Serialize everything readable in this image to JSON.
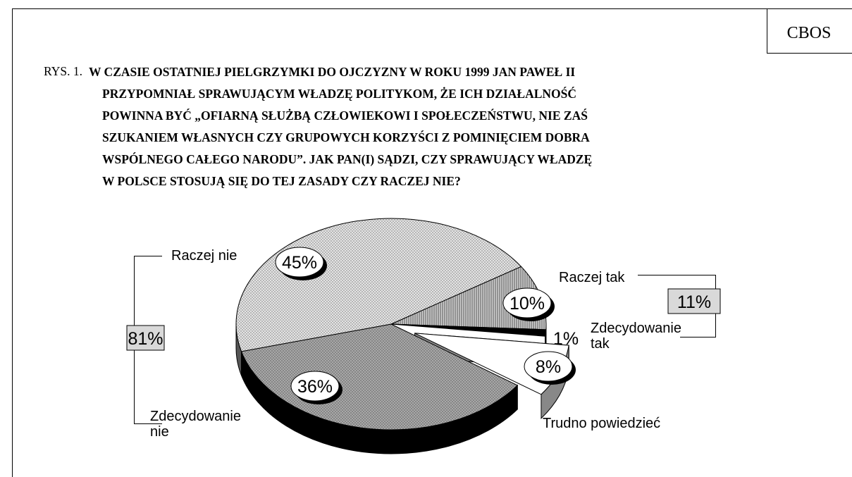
{
  "chart_data": {
    "type": "pie",
    "source": "CBOS",
    "figure_label": "RYS. 1.",
    "title": [
      "W CZASIE OSTATNIEJ PIELGRZYMKI DO OJCZYZNY W ROKU 1999 JAN PAWEŁ II",
      "PRZYPOMNIAŁ SPRAWUJĄCYM WŁADZĘ POLITYKOM, ŻE ICH DZIAŁALNOŚĆ",
      "POWINNA BYĆ „OFIARNĄ SŁUŻBĄ CZŁOWIEKOWI I SPOŁECZEŃSTWU, NIE ZAŚ",
      "SZUKANIEM WŁASNYCH CZY GRUPOWYCH KORZYŚCI Z POMINIĘCIEM DOBRA",
      "WSPÓLNEGO CAŁEGO NARODU”. JAK PAN(I) SĄDZI, CZY SPRAWUJĄCY WŁADZĘ",
      "W  POLSCE STOSUJĄ SIĘ DO TEJ ZASADY CZY RACZEJ NIE?"
    ],
    "categories": [
      "Raczej tak",
      "Zdecydowanie tak",
      "Trudno powiedzieć",
      "Zdecydowanie nie",
      "Raczej nie"
    ],
    "values": [
      10,
      1,
      8,
      36,
      45
    ],
    "value_labels": [
      "10%",
      "1%",
      "8%",
      "36%",
      "45%"
    ],
    "colors": [
      "#d0d0d0",
      "#000000",
      "#ffffff",
      "#a8a8a8",
      "#e4e4e4"
    ],
    "exploded": "Trudno powiedzieć",
    "groups": [
      {
        "value": 81,
        "label": "81%"
      },
      {
        "value": 11,
        "label": "11%"
      }
    ]
  }
}
